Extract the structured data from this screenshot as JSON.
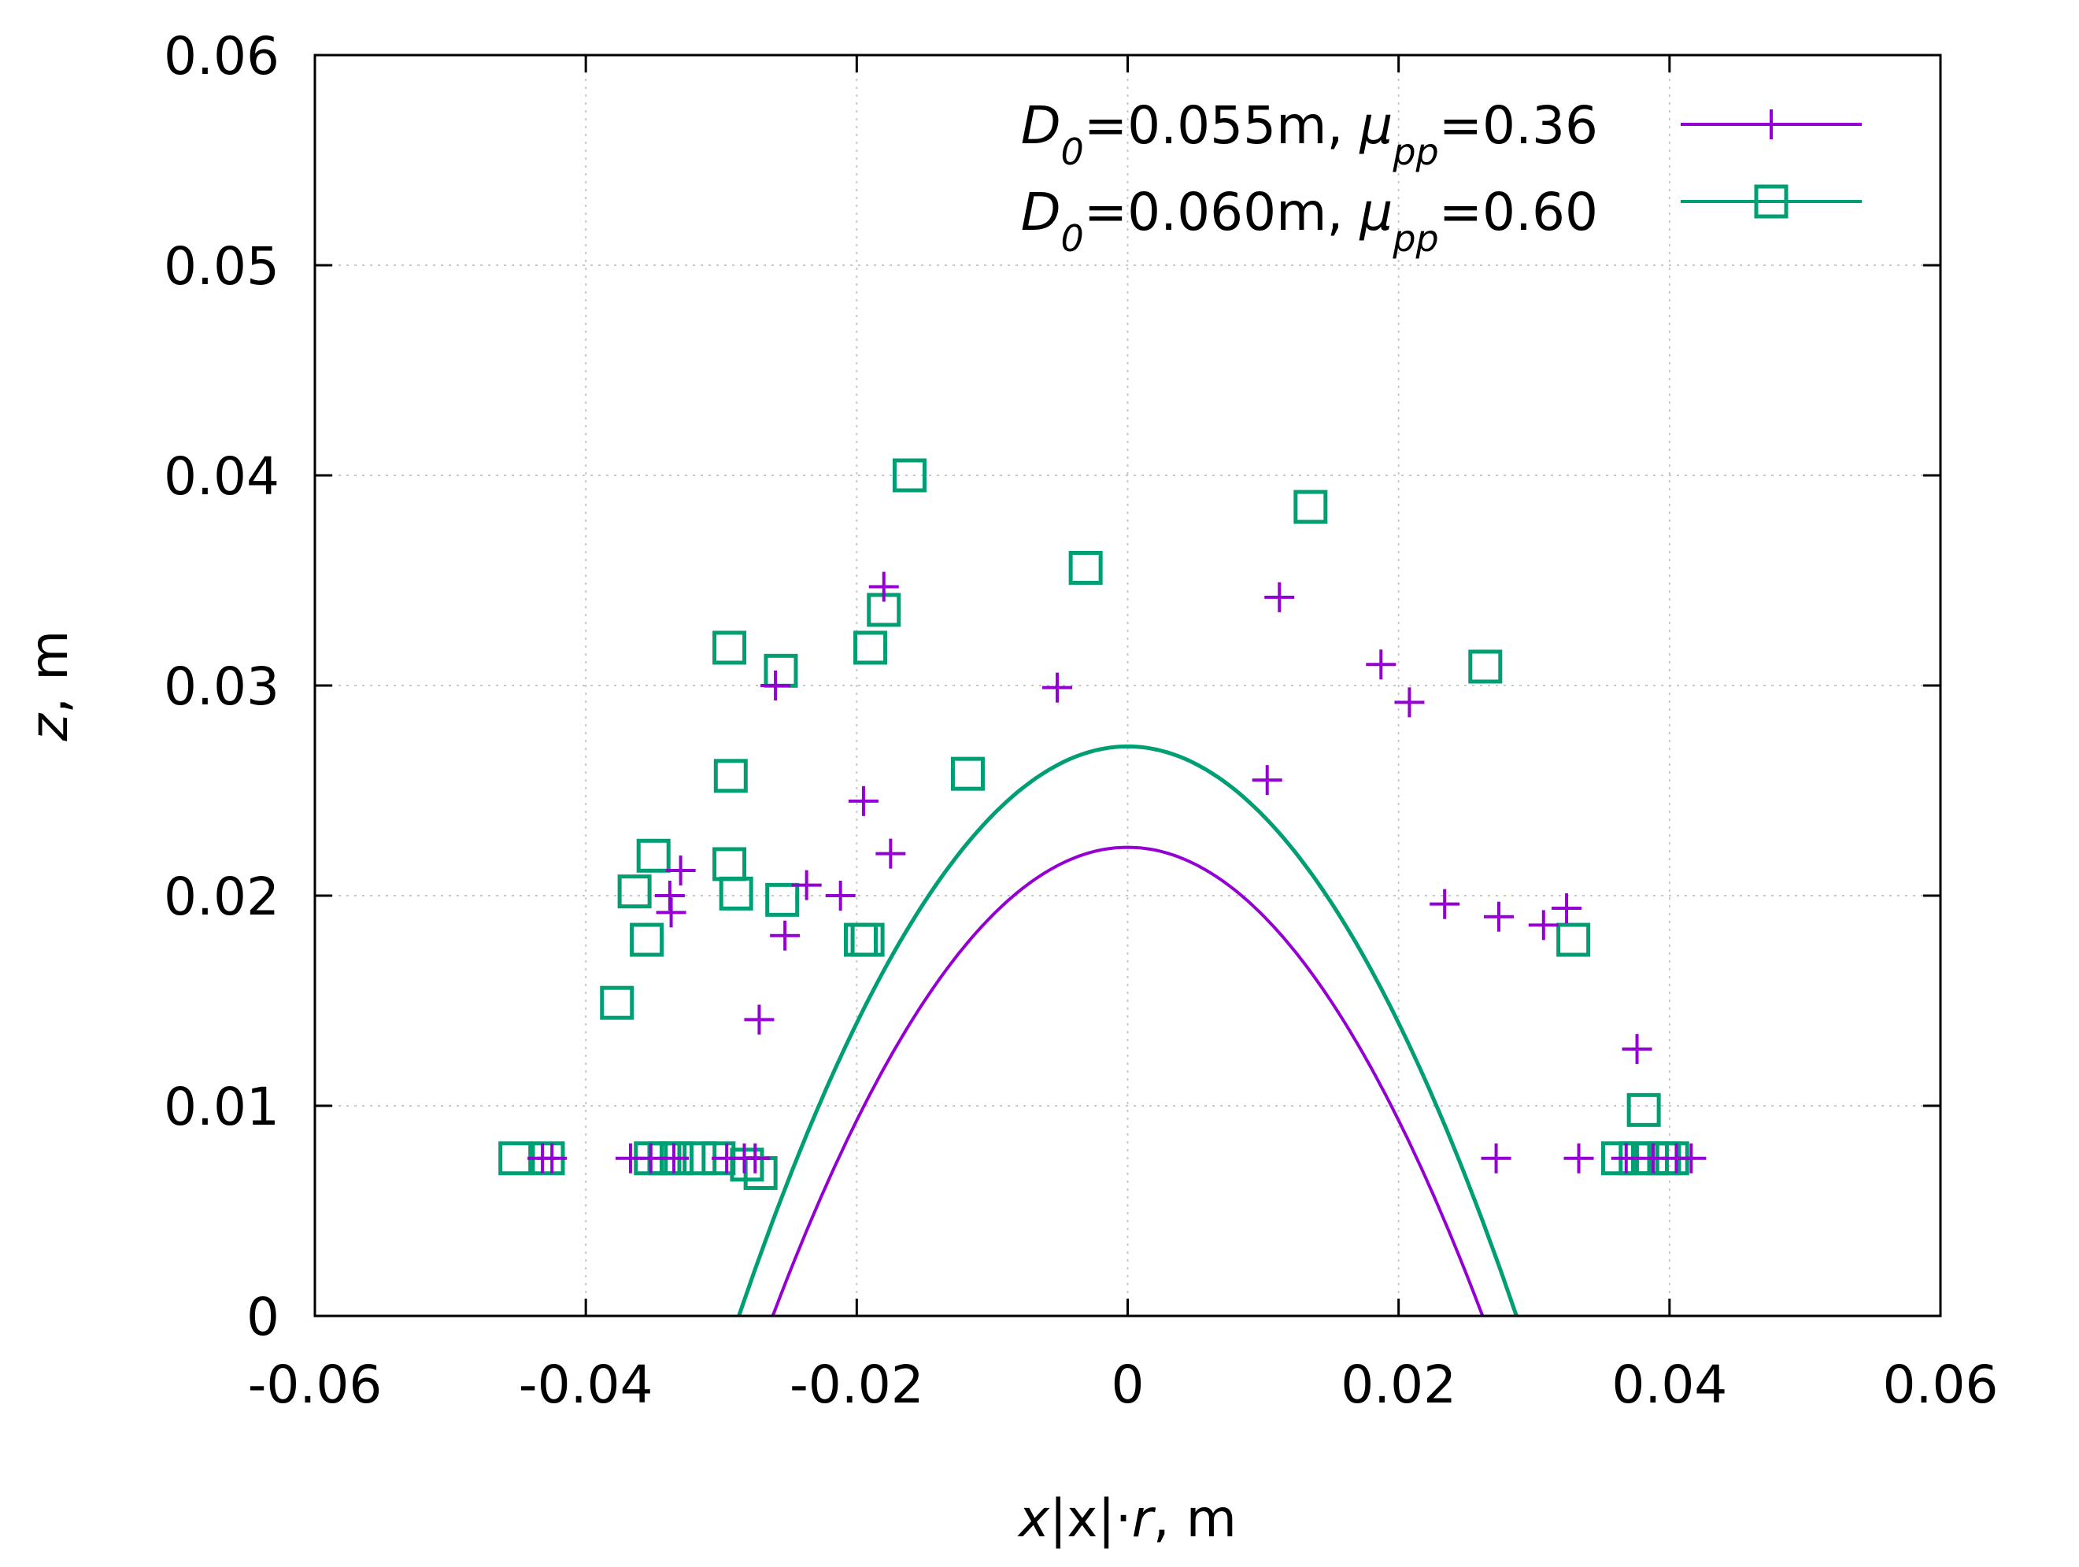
{
  "chart_data": {
    "type": "scatter",
    "xlabel": {
      "pre": "x",
      "mid": "|x|·",
      "var": "r",
      "post": ", m"
    },
    "ylabel": {
      "var": "z",
      "post": ", m"
    },
    "xlim": [
      -0.06,
      0.06
    ],
    "ylim": [
      0,
      0.06
    ],
    "xticks": [
      "-0.06",
      "-0.04",
      "-0.02",
      "0",
      "0.02",
      "0.04",
      "0.06"
    ],
    "xtick_values": [
      -0.06,
      -0.04,
      -0.02,
      0,
      0.02,
      0.04,
      0.06
    ],
    "yticks": [
      "0",
      "0.01",
      "0.02",
      "0.03",
      "0.04",
      "0.05",
      "0.06"
    ],
    "ytick_values": [
      0,
      0.01,
      0.02,
      0.03,
      0.04,
      0.05,
      0.06
    ],
    "grid": true,
    "legend_position": "top-right",
    "series": [
      {
        "marker": "plus",
        "color": "#9400d3",
        "legend": {
          "d_var": "D",
          "d_sub": "0",
          "d_val": "=0.055m, ",
          "mu_var": "μ",
          "mu_sub": "pp",
          "mu_val": "=0.36"
        },
        "curve": {
          "apex": 0.0223,
          "half_width": 0.0262
        },
        "points": [
          [
            -0.0432,
            0.0075
          ],
          [
            -0.0425,
            0.0075
          ],
          [
            -0.0367,
            0.0075
          ],
          [
            -0.0352,
            0.0075
          ],
          [
            -0.0335,
            0.0075
          ],
          [
            -0.0296,
            0.0075
          ],
          [
            -0.0283,
            0.0075
          ],
          [
            -0.0275,
            0.0075
          ],
          [
            -0.033,
            0.0212
          ],
          [
            -0.0338,
            0.02
          ],
          [
            -0.0337,
            0.0192
          ],
          [
            -0.026,
            0.03
          ],
          [
            -0.0253,
            0.0181
          ],
          [
            -0.0272,
            0.0141
          ],
          [
            -0.0237,
            0.0205
          ],
          [
            -0.0212,
            0.02
          ],
          [
            -0.0195,
            0.0245
          ],
          [
            -0.0175,
            0.022
          ],
          [
            -0.018,
            0.0347
          ],
          [
            -0.0052,
            0.0299
          ],
          [
            0.0103,
            0.0255
          ],
          [
            0.0112,
            0.0342
          ],
          [
            0.0187,
            0.031
          ],
          [
            0.0208,
            0.0292
          ],
          [
            0.0234,
            0.0196
          ],
          [
            0.0274,
            0.019
          ],
          [
            0.0307,
            0.0186
          ],
          [
            0.0324,
            0.0194
          ],
          [
            0.0376,
            0.0127
          ],
          [
            0.0272,
            0.0075
          ],
          [
            0.0333,
            0.0075
          ],
          [
            0.0368,
            0.0075
          ],
          [
            0.0388,
            0.0075
          ],
          [
            0.0405,
            0.0075
          ],
          [
            0.0416,
            0.0075
          ]
        ]
      },
      {
        "marker": "square",
        "color": "#009e73",
        "legend": {
          "d_var": "D",
          "d_sub": "0",
          "d_val": "=0.060m, ",
          "mu_var": "μ",
          "mu_sub": "pp",
          "mu_val": "=0.60"
        },
        "curve": {
          "apex": 0.0271,
          "half_width": 0.0287
        },
        "points": [
          [
            -0.0452,
            0.0075
          ],
          [
            -0.0428,
            0.0075
          ],
          [
            -0.0352,
            0.0075
          ],
          [
            -0.0342,
            0.0075
          ],
          [
            -0.0333,
            0.0075
          ],
          [
            -0.0316,
            0.0075
          ],
          [
            -0.0302,
            0.0075
          ],
          [
            -0.0281,
            0.0072
          ],
          [
            -0.0271,
            0.0068
          ],
          [
            -0.0377,
            0.0149
          ],
          [
            -0.0355,
            0.0179
          ],
          [
            -0.0364,
            0.0202
          ],
          [
            -0.035,
            0.0219
          ],
          [
            -0.0294,
            0.0215
          ],
          [
            -0.0289,
            0.0201
          ],
          [
            -0.0255,
            0.0198
          ],
          [
            -0.0293,
            0.0257
          ],
          [
            -0.0294,
            0.0318
          ],
          [
            -0.0256,
            0.0307
          ],
          [
            -0.0197,
            0.0179
          ],
          [
            -0.0192,
            0.0179
          ],
          [
            -0.019,
            0.0318
          ],
          [
            -0.018,
            0.0336
          ],
          [
            -0.0161,
            0.04
          ],
          [
            -0.0118,
            0.0258
          ],
          [
            -0.0031,
            0.0356
          ],
          [
            0.0135,
            0.0385
          ],
          [
            0.0264,
            0.0309
          ],
          [
            0.0329,
            0.0179
          ],
          [
            0.0381,
            0.0098
          ],
          [
            0.0362,
            0.0075
          ],
          [
            0.0375,
            0.0075
          ],
          [
            0.0387,
            0.0075
          ],
          [
            0.0396,
            0.0075
          ],
          [
            0.0402,
            0.0075
          ]
        ]
      }
    ]
  }
}
